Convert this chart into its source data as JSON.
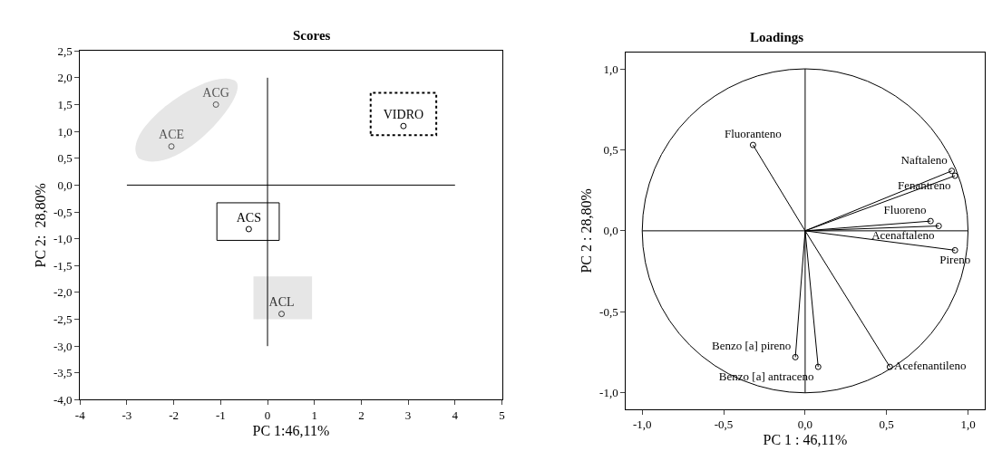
{
  "chart_data": [
    {
      "type": "scatter",
      "title": "Scores",
      "xlabel": "PC 1:46,11%",
      "ylabel": "PC 2:  28,80%",
      "xlim": [
        -4,
        5
      ],
      "ylim": [
        -4,
        2.5
      ],
      "xticks": [
        -4,
        -3,
        -2,
        -1,
        0,
        1,
        2,
        3,
        4,
        5
      ],
      "yticks": [
        {
          "value": 2.5,
          "label": "2,5"
        },
        {
          "value": 2,
          "label": "2,0"
        },
        {
          "value": 1.5,
          "label": "1,5"
        },
        {
          "value": 1,
          "label": "1,0"
        },
        {
          "value": 0.5,
          "label": "0,5"
        },
        {
          "value": 0,
          "label": "0,0"
        },
        {
          "value": -0.5,
          "label": "-0,5"
        },
        {
          "value": -1,
          "label": "-1,0"
        },
        {
          "value": -1.5,
          "label": "-1,5"
        },
        {
          "value": -2,
          "label": "-2,0"
        },
        {
          "value": -2.5,
          "label": "-2,5"
        },
        {
          "value": -3,
          "label": "-3,0"
        },
        {
          "value": -3.5,
          "label": "-3,5"
        },
        {
          "value": -4,
          "label": "-4,0"
        }
      ],
      "marker": "circle",
      "grid": false,
      "series": [
        {
          "name": "ACG",
          "color": "#555555",
          "x": [
            -1.1
          ],
          "values": [
            1.5
          ]
        },
        {
          "name": "ACE",
          "color": "#555555",
          "x": [
            -2.05
          ],
          "values": [
            0.72
          ]
        },
        {
          "name": "VIDRO",
          "color": "#000000",
          "x": [
            2.9
          ],
          "values": [
            1.1
          ]
        },
        {
          "name": "ACS",
          "color": "#000000",
          "x": [
            -0.4
          ],
          "values": [
            -0.82
          ]
        },
        {
          "name": "ACL",
          "color": "#333333",
          "x": [
            0.3
          ],
          "values": [
            -2.4
          ]
        }
      ],
      "ref_lines": [
        {
          "axis": "x",
          "value": 0,
          "color": "#000000"
        },
        {
          "axis": "y",
          "value": 0,
          "color": "#000000"
        }
      ]
    },
    {
      "type": "scatter",
      "title": "Loadings",
      "xlabel": "PC 1 : 46,11%",
      "ylabel": "PC 2 : 28,80%",
      "xlim": [
        -1.1,
        1.1
      ],
      "ylim": [
        -1.1,
        1.1
      ],
      "xticks": [
        {
          "value": -1,
          "label": "-1,0"
        },
        {
          "value": -0.5,
          "label": "-0,5"
        },
        {
          "value": 0,
          "label": "0,0"
        },
        {
          "value": 0.5,
          "label": "0,5"
        },
        {
          "value": 1,
          "label": "1,0"
        }
      ],
      "yticks": [
        {
          "value": 1,
          "label": "1,0"
        },
        {
          "value": 0.5,
          "label": "0,5"
        },
        {
          "value": 0,
          "label": "0,0"
        },
        {
          "value": -0.5,
          "label": "-0,5"
        },
        {
          "value": -1,
          "label": "-1,0"
        }
      ],
      "marker": "circle",
      "grid": false,
      "series": [
        {
          "name": "Fluoranteno",
          "color": "#000000",
          "x": [
            -0.32
          ],
          "values": [
            0.53
          ]
        },
        {
          "name": "Naftaleno",
          "color": "#000000",
          "x": [
            0.9
          ],
          "values": [
            0.37
          ]
        },
        {
          "name": "Fenantreno",
          "color": "#000000",
          "x": [
            0.92
          ],
          "values": [
            0.34
          ]
        },
        {
          "name": "Fluoreno",
          "color": "#000000",
          "x": [
            0.77
          ],
          "values": [
            0.06
          ]
        },
        {
          "name": "Acenaftaleno",
          "color": "#000000",
          "x": [
            0.82
          ],
          "values": [
            0.03
          ]
        },
        {
          "name": "Pireno",
          "color": "#000000",
          "x": [
            0.92
          ],
          "values": [
            -0.12
          ]
        },
        {
          "name": "Benzo [a] pireno",
          "color": "#000000",
          "x": [
            -0.06
          ],
          "values": [
            -0.78
          ]
        },
        {
          "name": "Benzo [a] antraceno",
          "color": "#000000",
          "x": [
            0.08
          ],
          "values": [
            -0.84
          ]
        },
        {
          "name": "Acefenantileno",
          "color": "#000000",
          "x": [
            0.52
          ],
          "values": [
            -0.84
          ]
        }
      ],
      "ref_lines": [
        {
          "axis": "x",
          "value": 0,
          "color": "#000000"
        },
        {
          "axis": "y",
          "value": 0,
          "color": "#000000"
        }
      ]
    }
  ]
}
